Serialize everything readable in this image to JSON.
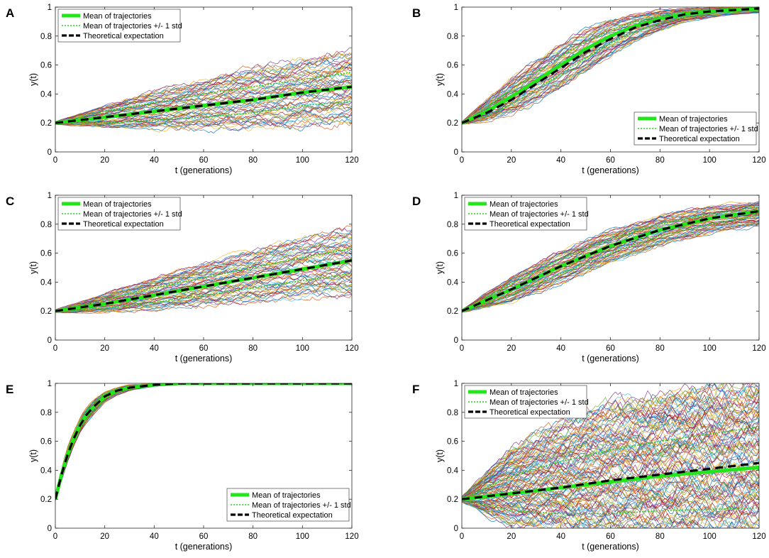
{
  "figure": {
    "xlabel": "t (generations)",
    "ylabel": "y(t)",
    "legend": [
      "Mean of trajectories",
      "Mean of trajectories +/- 1 std",
      "Theoretical expectation"
    ],
    "colors": {
      "mean": "#22e61a",
      "std": "#22d21a",
      "theory": "#000000",
      "trajectories": [
        "#0072bd",
        "#d95319",
        "#edb120",
        "#7e2f8e",
        "#77ac30",
        "#4dbeee",
        "#a2142f"
      ]
    }
  },
  "chart_data": [
    {
      "panel": "A",
      "type": "line",
      "xlim": [
        0,
        120
      ],
      "ylim": [
        0,
        1
      ],
      "xticks": [
        0,
        20,
        40,
        60,
        80,
        100,
        120
      ],
      "yticks": [
        0,
        0.2,
        0.4,
        0.6,
        0.8,
        1
      ],
      "x": [
        0,
        20,
        40,
        60,
        80,
        100,
        120
      ],
      "series": [
        {
          "name": "Theoretical expectation",
          "values": [
            0.2,
            0.24,
            0.28,
            0.32,
            0.36,
            0.41,
            0.45
          ]
        },
        {
          "name": "Mean of trajectories",
          "values": [
            0.2,
            0.24,
            0.28,
            0.32,
            0.36,
            0.41,
            0.45
          ]
        },
        {
          "name": "Mean of trajectories +/- 1 std",
          "upper": [
            0.2,
            0.28,
            0.34,
            0.4,
            0.45,
            0.5,
            0.55
          ],
          "lower": [
            0.2,
            0.2,
            0.22,
            0.24,
            0.27,
            0.32,
            0.35
          ]
        }
      ],
      "trajectory_envelope": {
        "upper": [
          0.21,
          0.32,
          0.42,
          0.5,
          0.58,
          0.64,
          0.7
        ],
        "lower": [
          0.19,
          0.17,
          0.16,
          0.16,
          0.17,
          0.19,
          0.2
        ]
      },
      "legend_position": "top-left"
    },
    {
      "panel": "B",
      "type": "line",
      "xlim": [
        0,
        120
      ],
      "ylim": [
        0,
        1
      ],
      "xticks": [
        0,
        20,
        40,
        60,
        80,
        100,
        120
      ],
      "yticks": [
        0,
        0.2,
        0.4,
        0.6,
        0.8,
        1
      ],
      "x": [
        0,
        10,
        20,
        30,
        40,
        50,
        60,
        70,
        80,
        90,
        100,
        110,
        120
      ],
      "series": [
        {
          "name": "Theoretical expectation",
          "values": [
            0.2,
            0.27,
            0.36,
            0.47,
            0.58,
            0.69,
            0.78,
            0.86,
            0.91,
            0.95,
            0.97,
            0.98,
            0.99
          ]
        },
        {
          "name": "Mean of trajectories",
          "values": [
            0.2,
            0.28,
            0.38,
            0.49,
            0.6,
            0.71,
            0.8,
            0.87,
            0.92,
            0.95,
            0.97,
            0.98,
            0.99
          ]
        },
        {
          "name": "Mean of trajectories +/- 1 std",
          "upper": [
            0.2,
            0.31,
            0.43,
            0.55,
            0.66,
            0.76,
            0.84,
            0.9,
            0.94,
            0.97,
            0.98,
            0.99,
            0.995
          ],
          "lower": [
            0.2,
            0.25,
            0.33,
            0.43,
            0.54,
            0.65,
            0.75,
            0.83,
            0.89,
            0.93,
            0.96,
            0.97,
            0.98
          ]
        }
      ],
      "trajectory_envelope": {
        "upper": [
          0.21,
          0.36,
          0.51,
          0.64,
          0.75,
          0.84,
          0.91,
          0.95,
          0.98,
          0.99,
          1.0,
          1.0,
          1.0
        ],
        "lower": [
          0.19,
          0.21,
          0.26,
          0.34,
          0.44,
          0.55,
          0.66,
          0.76,
          0.84,
          0.9,
          0.93,
          0.95,
          0.96
        ]
      },
      "legend_position": "bottom-right"
    },
    {
      "panel": "C",
      "type": "line",
      "xlim": [
        0,
        120
      ],
      "ylim": [
        0,
        1
      ],
      "xticks": [
        0,
        20,
        40,
        60,
        80,
        100,
        120
      ],
      "yticks": [
        0,
        0.2,
        0.4,
        0.6,
        0.8,
        1
      ],
      "x": [
        0,
        20,
        40,
        60,
        80,
        100,
        120
      ],
      "series": [
        {
          "name": "Theoretical expectation",
          "values": [
            0.2,
            0.25,
            0.31,
            0.37,
            0.43,
            0.49,
            0.55
          ]
        },
        {
          "name": "Mean of trajectories",
          "values": [
            0.2,
            0.25,
            0.31,
            0.37,
            0.43,
            0.49,
            0.55
          ]
        },
        {
          "name": "Mean of trajectories +/- 1 std",
          "upper": [
            0.2,
            0.28,
            0.36,
            0.43,
            0.5,
            0.57,
            0.63
          ],
          "lower": [
            0.2,
            0.22,
            0.26,
            0.31,
            0.36,
            0.41,
            0.46
          ]
        }
      ],
      "trajectory_envelope": {
        "upper": [
          0.21,
          0.32,
          0.43,
          0.53,
          0.62,
          0.7,
          0.77
        ],
        "lower": [
          0.19,
          0.19,
          0.21,
          0.24,
          0.27,
          0.3,
          0.3
        ]
      },
      "legend_position": "top-left"
    },
    {
      "panel": "D",
      "type": "line",
      "xlim": [
        0,
        120
      ],
      "ylim": [
        0,
        1
      ],
      "xticks": [
        0,
        20,
        40,
        60,
        80,
        100,
        120
      ],
      "yticks": [
        0,
        0.2,
        0.4,
        0.6,
        0.8,
        1
      ],
      "x": [
        0,
        20,
        40,
        60,
        80,
        100,
        120
      ],
      "series": [
        {
          "name": "Theoretical expectation",
          "values": [
            0.2,
            0.35,
            0.51,
            0.65,
            0.76,
            0.84,
            0.89
          ]
        },
        {
          "name": "Mean of trajectories",
          "values": [
            0.2,
            0.35,
            0.51,
            0.65,
            0.76,
            0.84,
            0.89
          ]
        },
        {
          "name": "Mean of trajectories +/- 1 std",
          "upper": [
            0.2,
            0.39,
            0.56,
            0.7,
            0.8,
            0.87,
            0.92
          ],
          "lower": [
            0.2,
            0.31,
            0.46,
            0.6,
            0.72,
            0.8,
            0.86
          ]
        }
      ],
      "trajectory_envelope": {
        "upper": [
          0.21,
          0.44,
          0.62,
          0.76,
          0.86,
          0.92,
          0.96
        ],
        "lower": [
          0.19,
          0.26,
          0.39,
          0.53,
          0.65,
          0.74,
          0.79
        ]
      },
      "legend_position": "top-left"
    },
    {
      "panel": "E",
      "type": "line",
      "xlim": [
        0,
        120
      ],
      "ylim": [
        0,
        1
      ],
      "xticks": [
        0,
        20,
        40,
        60,
        80,
        100,
        120
      ],
      "yticks": [
        0,
        0.2,
        0.4,
        0.6,
        0.8,
        1
      ],
      "x": [
        0,
        2.5,
        5,
        7.5,
        10,
        12.5,
        15,
        20,
        25,
        30,
        40,
        50,
        60,
        80,
        100,
        120
      ],
      "series": [
        {
          "name": "Theoretical expectation",
          "values": [
            0.2,
            0.37,
            0.51,
            0.62,
            0.71,
            0.78,
            0.83,
            0.91,
            0.95,
            0.97,
            0.99,
            1.0,
            1.0,
            1.0,
            1.0,
            1.0
          ]
        },
        {
          "name": "Mean of trajectories",
          "values": [
            0.2,
            0.37,
            0.51,
            0.62,
            0.71,
            0.78,
            0.83,
            0.91,
            0.95,
            0.97,
            0.99,
            1.0,
            1.0,
            1.0,
            1.0,
            1.0
          ]
        },
        {
          "name": "Mean of trajectories +/- 1 std",
          "upper": [
            0.2,
            0.39,
            0.54,
            0.65,
            0.74,
            0.81,
            0.86,
            0.93,
            0.96,
            0.98,
            0.995,
            1.0,
            1.0,
            1.0,
            1.0,
            1.0
          ],
          "lower": [
            0.2,
            0.35,
            0.48,
            0.59,
            0.68,
            0.75,
            0.8,
            0.89,
            0.94,
            0.96,
            0.985,
            0.995,
            1.0,
            1.0,
            1.0,
            1.0
          ]
        }
      ],
      "trajectory_envelope": {
        "upper": [
          0.21,
          0.41,
          0.56,
          0.67,
          0.76,
          0.83,
          0.88,
          0.94,
          0.97,
          0.99,
          1.0,
          1.0,
          1.0,
          1.0,
          1.0,
          1.0
        ],
        "lower": [
          0.19,
          0.33,
          0.46,
          0.57,
          0.66,
          0.73,
          0.78,
          0.87,
          0.92,
          0.95,
          0.98,
          0.99,
          1.0,
          1.0,
          1.0,
          1.0
        ]
      },
      "legend_position": "bottom-right"
    },
    {
      "panel": "F",
      "type": "line",
      "xlim": [
        0,
        120
      ],
      "ylim": [
        0,
        1
      ],
      "xticks": [
        0,
        20,
        40,
        60,
        80,
        100,
        120
      ],
      "yticks": [
        0,
        0.2,
        0.4,
        0.6,
        0.8,
        1
      ],
      "x": [
        0,
        20,
        40,
        60,
        80,
        100,
        120
      ],
      "series": [
        {
          "name": "Theoretical expectation",
          "values": [
            0.2,
            0.24,
            0.28,
            0.33,
            0.37,
            0.41,
            0.45
          ]
        },
        {
          "name": "Mean of trajectories",
          "values": [
            0.2,
            0.24,
            0.28,
            0.32,
            0.36,
            0.39,
            0.42
          ]
        },
        {
          "name": "Mean of trajectories +/- 1 std",
          "upper": [
            0.2,
            0.36,
            0.46,
            0.54,
            0.6,
            0.65,
            0.7
          ],
          "lower": [
            0.2,
            0.12,
            0.1,
            0.1,
            0.12,
            0.13,
            0.14
          ]
        }
      ],
      "trajectory_envelope": {
        "upper": [
          0.22,
          0.55,
          0.72,
          0.84,
          0.92,
          0.97,
          1.0
        ],
        "lower": [
          0.18,
          0.02,
          0.0,
          0.0,
          0.0,
          0.0,
          0.0
        ]
      },
      "legend_position": "top-left"
    }
  ]
}
